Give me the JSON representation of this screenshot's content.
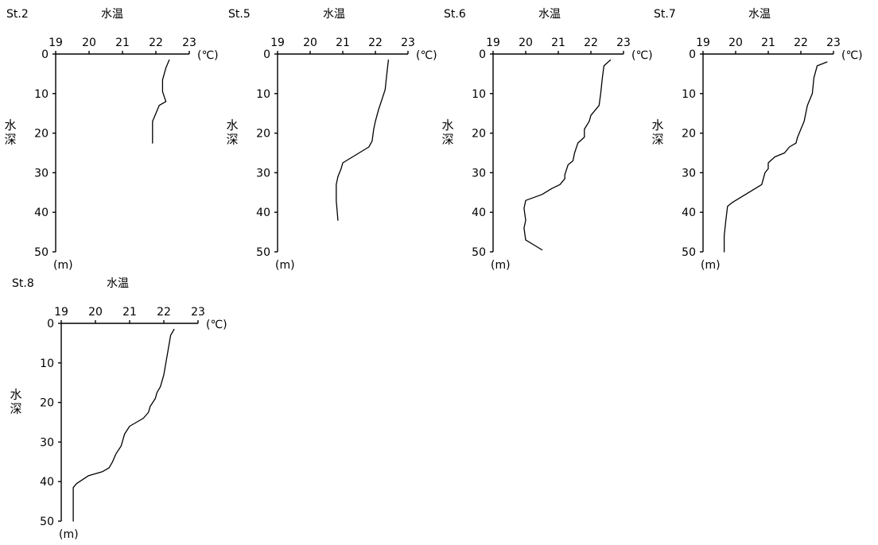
{
  "chart_data": [
    {
      "type": "line",
      "station": "St.2",
      "title": "水温",
      "ylabel": "水深",
      "xunit": "(℃)",
      "yunit": "(m)",
      "xlim": [
        19,
        23
      ],
      "ylim": [
        0,
        50
      ],
      "x_ticks": [
        19,
        20,
        21,
        22,
        23
      ],
      "y_ticks": [
        0,
        10,
        20,
        30,
        40,
        50
      ],
      "series": [
        {
          "x": [
            22.4,
            22.3,
            22.2,
            22.2,
            22.3,
            22.1,
            22.0,
            21.9,
            21.9,
            21.9
          ],
          "y": [
            1.5,
            3.5,
            6.5,
            9.5,
            12.0,
            13.0,
            15.0,
            17.0,
            20.0,
            22.5
          ]
        }
      ]
    },
    {
      "type": "line",
      "station": "St.5",
      "title": "水温",
      "ylabel": "水深",
      "xunit": "(℃)",
      "yunit": "(m)",
      "xlim": [
        19,
        23
      ],
      "ylim": [
        0,
        50
      ],
      "x_ticks": [
        19,
        20,
        21,
        22,
        23
      ],
      "y_ticks": [
        0,
        10,
        20,
        30,
        40,
        50
      ],
      "series": [
        {
          "x": [
            22.4,
            22.35,
            22.3,
            22.2,
            22.1,
            22.0,
            21.95,
            21.9,
            21.8,
            21.5,
            21.2,
            21.0,
            20.95,
            20.85,
            20.8,
            20.8,
            20.85
          ],
          "y": [
            1.5,
            5.0,
            9.0,
            11.5,
            14.0,
            17.0,
            19.0,
            22.0,
            23.5,
            25.0,
            26.5,
            27.5,
            29.0,
            31.0,
            33.0,
            37.0,
            42.0
          ]
        }
      ]
    },
    {
      "type": "line",
      "station": "St.6",
      "title": "水温",
      "ylabel": "水深",
      "xunit": "(℃)",
      "yunit": "(m)",
      "xlim": [
        19,
        23
      ],
      "ylim": [
        0,
        50
      ],
      "x_ticks": [
        19,
        20,
        21,
        22,
        23
      ],
      "y_ticks": [
        0,
        10,
        20,
        30,
        40,
        50
      ],
      "series": [
        {
          "x": [
            22.6,
            22.4,
            22.35,
            22.3,
            22.25,
            22.0,
            21.95,
            21.8,
            21.8,
            21.6,
            21.5,
            21.45,
            21.3,
            21.2,
            21.2,
            21.05,
            20.8,
            20.5,
            20.0,
            19.95,
            20.0,
            19.95,
            20.0,
            20.2,
            20.5
          ],
          "y": [
            1.5,
            3.0,
            6.0,
            10.0,
            13.0,
            15.5,
            17.0,
            19.0,
            21.0,
            22.5,
            25.0,
            27.0,
            28.0,
            30.5,
            31.5,
            33.0,
            34.0,
            35.5,
            37.0,
            39.0,
            42.0,
            44.0,
            47.0,
            48.0,
            49.5
          ]
        }
      ]
    },
    {
      "type": "line",
      "station": "St.7",
      "title": "水温",
      "ylabel": "水深",
      "xunit": "(℃)",
      "yunit": "(m)",
      "xlim": [
        19,
        23
      ],
      "ylim": [
        0,
        50
      ],
      "x_ticks": [
        19,
        20,
        21,
        22,
        23
      ],
      "y_ticks": [
        0,
        10,
        20,
        30,
        40,
        50
      ],
      "series": [
        {
          "x": [
            22.8,
            22.5,
            22.4,
            22.35,
            22.2,
            22.1,
            22.0,
            21.9,
            21.85,
            21.65,
            21.5,
            21.2,
            21.0,
            21.0,
            20.9,
            20.8,
            20.5,
            20.2,
            19.9,
            19.75,
            19.7,
            19.65,
            19.65
          ],
          "y": [
            2.0,
            3.0,
            6.0,
            10.0,
            13.0,
            17.0,
            19.0,
            21.0,
            22.5,
            23.5,
            25.0,
            26.0,
            27.5,
            29.0,
            30.0,
            33.0,
            34.5,
            36.0,
            37.5,
            38.5,
            42.0,
            46.0,
            50.0
          ]
        }
      ]
    },
    {
      "type": "line",
      "station": "St.8",
      "title": "水温",
      "ylabel": "水深",
      "xunit": "(℃)",
      "yunit": "(m)",
      "xlim": [
        19,
        23
      ],
      "ylim": [
        0,
        50
      ],
      "x_ticks": [
        19,
        20,
        21,
        22,
        23
      ],
      "y_ticks": [
        0,
        10,
        20,
        30,
        40,
        50
      ],
      "series": [
        {
          "x": [
            22.3,
            22.2,
            22.1,
            22.0,
            21.9,
            21.8,
            21.75,
            21.6,
            21.55,
            21.4,
            21.2,
            21.0,
            20.85,
            20.75,
            20.6,
            20.5,
            20.4,
            20.2,
            19.8,
            19.45,
            19.35,
            19.35,
            19.35
          ],
          "y": [
            1.5,
            3.0,
            8.0,
            13.0,
            16.0,
            17.5,
            19.0,
            21.0,
            22.5,
            24.0,
            25.0,
            26.0,
            28.0,
            31.0,
            33.0,
            35.0,
            36.5,
            37.5,
            38.5,
            40.5,
            41.5,
            45.0,
            50.0
          ]
        }
      ]
    }
  ]
}
